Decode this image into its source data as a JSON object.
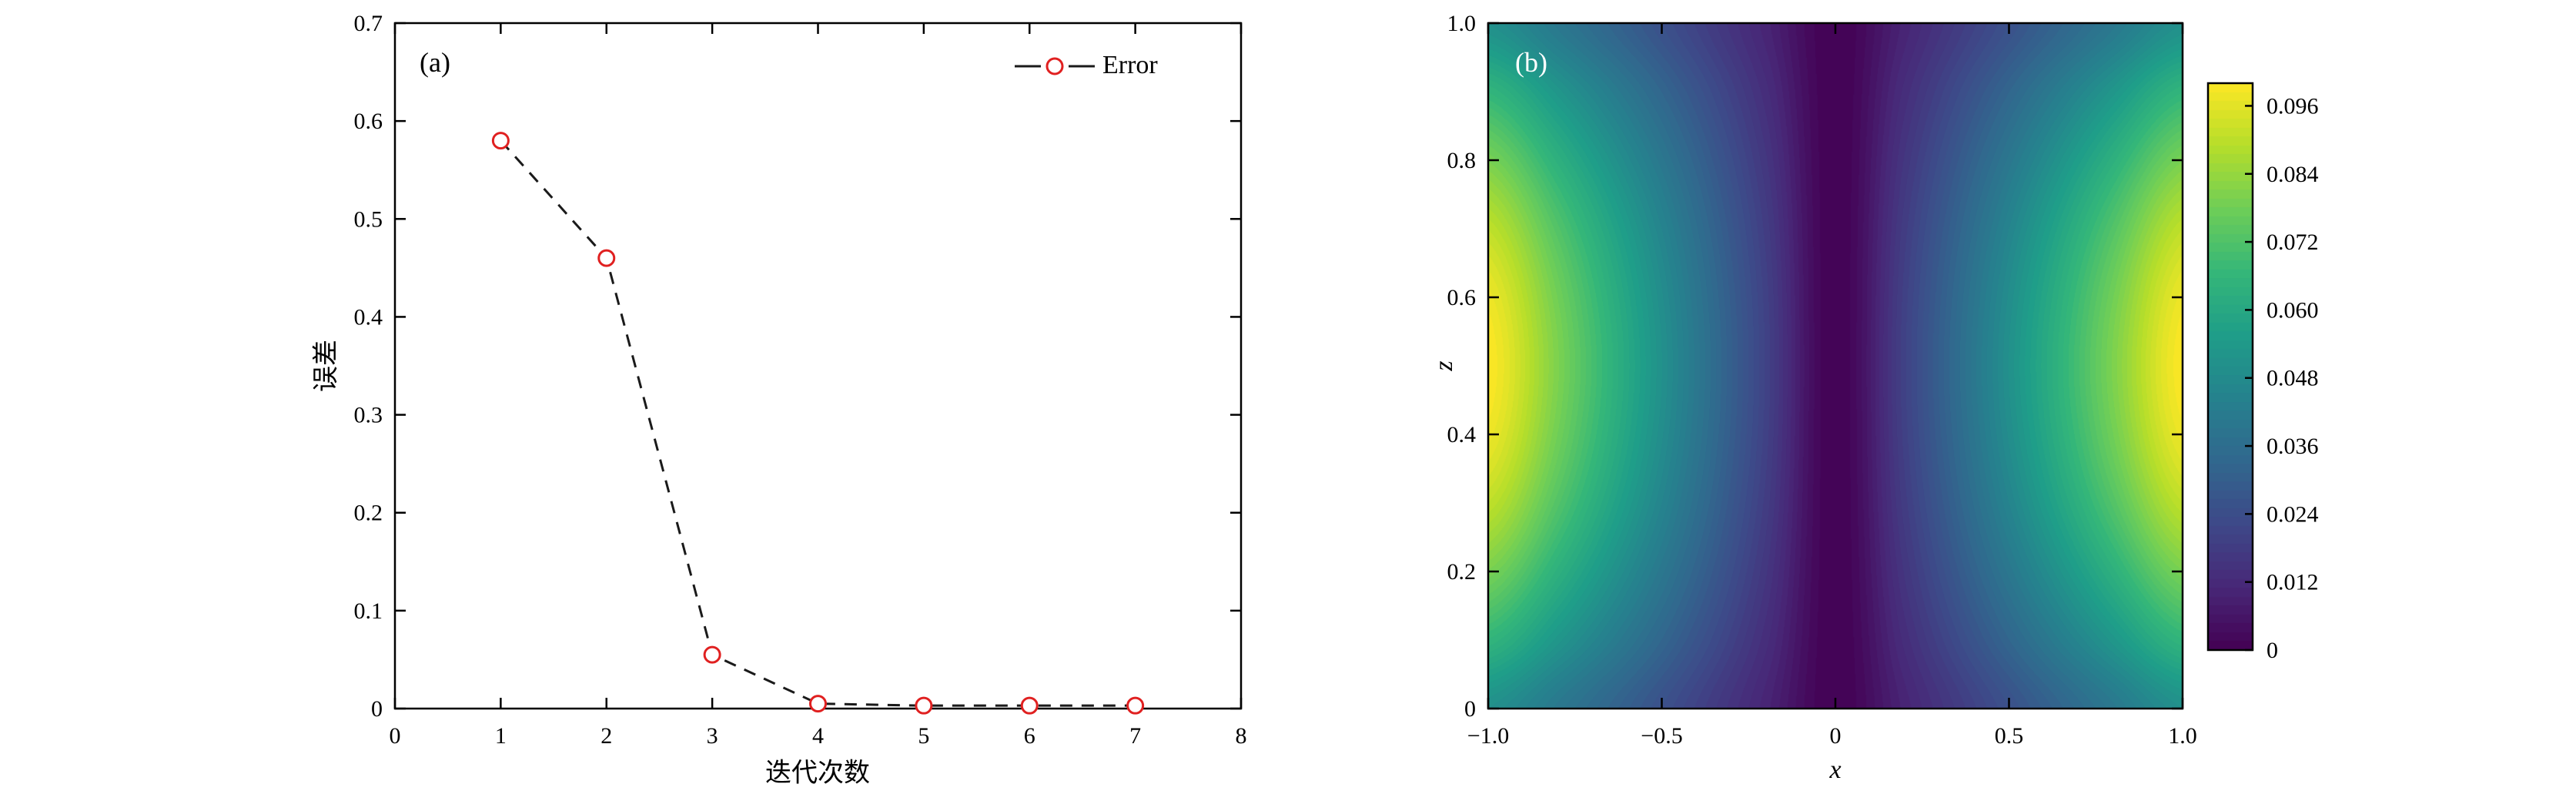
{
  "figure": {
    "background": "#ffffff",
    "text_color": "#000000",
    "axis_color": "#000000"
  },
  "chart_data": [
    {
      "id": "error-convergence",
      "type": "line",
      "panel_label": "(a)",
      "xlabel": "迭代次数",
      "ylabel": "误差",
      "xlim": [
        0,
        8
      ],
      "ylim": [
        0,
        0.7
      ],
      "xticks": [
        0,
        1,
        2,
        3,
        4,
        5,
        6,
        7,
        8
      ],
      "xtick_labels": [
        "0",
        "1",
        "2",
        "3",
        "4",
        "5",
        "6",
        "7",
        "8"
      ],
      "yticks": [
        0,
        0.1,
        0.2,
        0.3,
        0.4,
        0.5,
        0.6,
        0.7
      ],
      "ytick_labels": [
        "0",
        "0.1",
        "0.2",
        "0.3",
        "0.4",
        "0.5",
        "0.6",
        "0.7"
      ],
      "grid": false,
      "legend": {
        "position": "top-right"
      },
      "series": [
        {
          "name": "Error",
          "x": [
            1,
            2,
            3,
            4,
            5,
            6,
            7
          ],
          "y": [
            0.58,
            0.46,
            0.055,
            0.005,
            0.003,
            0.003,
            0.003
          ],
          "line_style": "dashed",
          "line_color": "#1a1a1a",
          "marker": "open-circle",
          "marker_color": "#e02020"
        }
      ]
    },
    {
      "id": "field-distribution",
      "type": "heatmap",
      "panel_label": "(b)",
      "xlabel": "x",
      "ylabel": "z",
      "xlim": [
        -1,
        1
      ],
      "ylim": [
        0,
        1
      ],
      "xticks": [
        -1,
        -0.5,
        0,
        0.5,
        1
      ],
      "xtick_labels": [
        "−1.0",
        "−0.5",
        "0",
        "0.5",
        "1.0"
      ],
      "yticks": [
        0,
        0.2,
        0.4,
        0.6,
        0.8,
        1.0
      ],
      "ytick_labels": [
        "0",
        "0.2",
        "0.4",
        "0.6",
        "0.8",
        "1.0"
      ],
      "colormap": "viridis",
      "vmin": 0,
      "vmax": 0.1,
      "colorbar_tick_values": [
        0.096,
        0.084,
        0.072,
        0.06,
        0.048,
        0.036,
        0.024,
        0.012,
        0
      ],
      "colorbar_tick_labels": [
        "0.096",
        "0.084",
        "0.072",
        "0.060",
        "0.048",
        "0.036",
        "0.024",
        "0.012",
        "0"
      ],
      "grid_x": [
        -1,
        -0.8,
        -0.6,
        -0.4,
        -0.2,
        0,
        0.2,
        0.4,
        0.6,
        0.8,
        1
      ],
      "grid_z": [
        0,
        0.1,
        0.2,
        0.3,
        0.4,
        0.5,
        0.6,
        0.7,
        0.8,
        0.9,
        1
      ],
      "values": [
        [
          0.05,
          0.04,
          0.03,
          0.02,
          0.01,
          0,
          0.01,
          0.02,
          0.03,
          0.04,
          0.05
        ],
        [
          0.0655,
          0.0524,
          0.0393,
          0.0262,
          0.0131,
          0,
          0.0131,
          0.0262,
          0.0393,
          0.0524,
          0.0655
        ],
        [
          0.0794,
          0.0635,
          0.0476,
          0.0318,
          0.0159,
          0,
          0.0159,
          0.0318,
          0.0476,
          0.0635,
          0.0794
        ],
        [
          0.0905,
          0.0724,
          0.0543,
          0.0362,
          0.0181,
          0,
          0.0181,
          0.0362,
          0.0543,
          0.0724,
          0.0905
        ],
        [
          0.0976,
          0.078,
          0.0585,
          0.039,
          0.0195,
          0,
          0.0195,
          0.039,
          0.0585,
          0.078,
          0.0976
        ],
        [
          0.1,
          0.08,
          0.06,
          0.04,
          0.02,
          0,
          0.02,
          0.04,
          0.06,
          0.08,
          0.1
        ],
        [
          0.0976,
          0.078,
          0.0585,
          0.039,
          0.0195,
          0,
          0.0195,
          0.039,
          0.0585,
          0.078,
          0.0976
        ],
        [
          0.0905,
          0.0724,
          0.0543,
          0.0362,
          0.0181,
          0,
          0.0181,
          0.0362,
          0.0543,
          0.0724,
          0.0905
        ],
        [
          0.0794,
          0.0635,
          0.0476,
          0.0318,
          0.0159,
          0,
          0.0159,
          0.0318,
          0.0476,
          0.0635,
          0.0794
        ],
        [
          0.0655,
          0.0524,
          0.0393,
          0.0262,
          0.0131,
          0,
          0.0131,
          0.0262,
          0.0393,
          0.0524,
          0.0655
        ],
        [
          0.05,
          0.04,
          0.03,
          0.02,
          0.01,
          0,
          0.01,
          0.02,
          0.03,
          0.04,
          0.05
        ]
      ]
    }
  ]
}
